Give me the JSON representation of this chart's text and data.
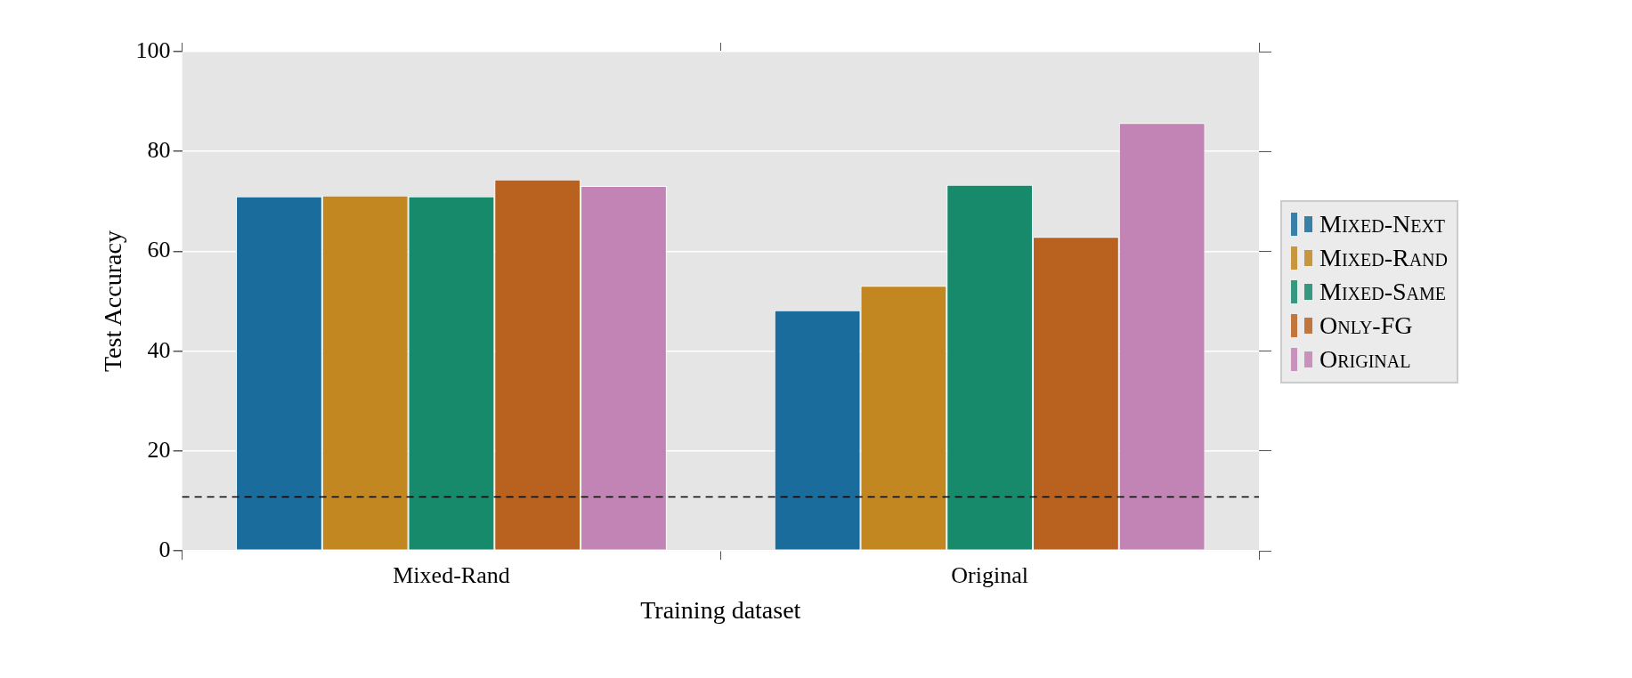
{
  "chart_data": {
    "type": "bar",
    "xlabel": "Training dataset",
    "ylabel": "Test Accuracy",
    "categories": [
      "Mixed-Rand",
      "Original"
    ],
    "series": [
      {
        "name": "Mixed-Next",
        "color": "#1a6c9c",
        "values": [
          71.0,
          48.2
        ]
      },
      {
        "name": "Mixed-Rand",
        "color": "#c28721",
        "values": [
          71.2,
          53.1
        ]
      },
      {
        "name": "Mixed-Same",
        "color": "#168a6b",
        "values": [
          71.0,
          73.3
        ]
      },
      {
        "name": "Only-FG",
        "color": "#b9611e",
        "values": [
          74.4,
          62.9
        ]
      },
      {
        "name": "Original",
        "color": "#c283b5",
        "values": [
          73.1,
          85.7
        ]
      }
    ],
    "ylim": [
      0,
      100
    ],
    "yticks": [
      0,
      20,
      40,
      60,
      80,
      100
    ],
    "grid": "y",
    "legend": "right",
    "ref_lines": [
      {
        "axis": "y",
        "value": 10.8,
        "color": "#000000",
        "line_style": "dashed"
      }
    ]
  }
}
